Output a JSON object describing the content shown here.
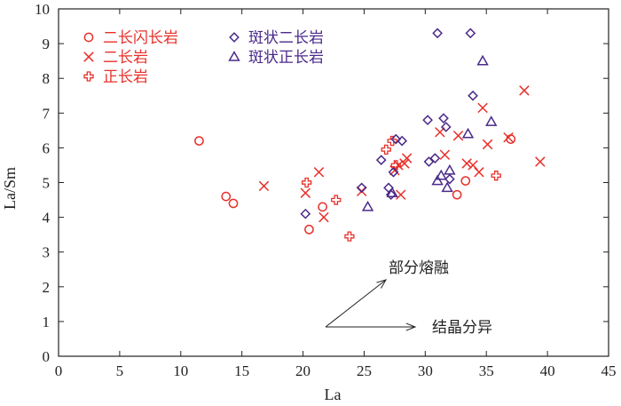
{
  "chart_data": {
    "type": "scatter",
    "title": "",
    "xlabel": "La",
    "ylabel": "La/Sm",
    "xlim": [
      0,
      45
    ],
    "ylim": [
      0,
      10
    ],
    "xticks": [
      0,
      5,
      10,
      15,
      20,
      25,
      30,
      35,
      40,
      45
    ],
    "yticks": [
      0,
      1,
      2,
      3,
      4,
      5,
      6,
      7,
      8,
      9,
      10
    ],
    "grid": false,
    "legend_position": "top-left",
    "series": [
      {
        "name": "二长闪长岩",
        "marker": "circle",
        "color": "#e8302a",
        "x": [
          11.5,
          13.7,
          14.3,
          20.5,
          21.6,
          32.6,
          33.3,
          37.0
        ],
        "y": [
          6.2,
          4.6,
          4.4,
          3.65,
          4.3,
          4.65,
          5.05,
          6.25
        ]
      },
      {
        "name": "二长岩",
        "marker": "x",
        "color": "#e8302a",
        "x": [
          16.8,
          20.2,
          21.3,
          21.7,
          24.8,
          27.5,
          27.8,
          28.0,
          28.3,
          28.5,
          31.2,
          31.6,
          32.7,
          33.4,
          33.9,
          34.4,
          34.7,
          35.1,
          36.8,
          38.1,
          39.4
        ],
        "y": [
          4.9,
          4.7,
          5.3,
          4.0,
          4.75,
          5.35,
          5.5,
          4.65,
          5.55,
          5.7,
          6.45,
          5.8,
          6.35,
          5.55,
          5.5,
          5.3,
          7.15,
          6.1,
          6.3,
          7.65,
          5.6
        ]
      },
      {
        "name": "正长岩",
        "marker": "plus",
        "color": "#e8302a",
        "x": [
          20.3,
          22.7,
          23.8,
          26.8,
          27.3,
          27.6,
          35.8
        ],
        "y": [
          5.0,
          4.5,
          3.45,
          5.95,
          6.2,
          5.5,
          5.2
        ]
      },
      {
        "name": "斑状二长岩",
        "marker": "diamond",
        "color": "#4a2a8a",
        "x": [
          20.2,
          24.8,
          26.4,
          27.0,
          27.2,
          27.4,
          27.6,
          28.1,
          30.2,
          30.3,
          30.8,
          31.0,
          31.5,
          31.7,
          32.0,
          33.7,
          33.9
        ],
        "y": [
          4.1,
          4.85,
          5.65,
          4.85,
          4.65,
          5.3,
          6.25,
          6.2,
          6.8,
          5.6,
          5.7,
          9.3,
          6.85,
          6.6,
          5.1,
          9.3,
          7.5
        ]
      },
      {
        "name": "斑状正长岩",
        "marker": "triangle",
        "color": "#4a2a8a",
        "x": [
          25.3,
          27.3,
          31.0,
          31.3,
          31.8,
          32.0,
          33.5,
          34.7,
          35.4
        ],
        "y": [
          4.3,
          4.7,
          5.05,
          5.2,
          4.85,
          5.35,
          6.4,
          8.5,
          6.75
        ]
      }
    ],
    "annotations": [
      {
        "text": "部分熔融",
        "type": "arrow"
      },
      {
        "text": "结晶分异",
        "type": "arrow"
      }
    ]
  }
}
